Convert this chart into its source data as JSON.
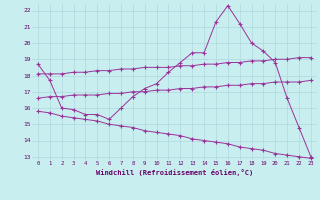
{
  "xlabel": "Windchill (Refroidissement éolien,°C)",
  "background_color": "#c8eef0",
  "grid_color": "#b0d8dc",
  "line_color": "#993399",
  "xlim": [
    -0.5,
    23.5
  ],
  "ylim": [
    12.8,
    22.4
  ],
  "xticks": [
    0,
    1,
    2,
    3,
    4,
    5,
    6,
    7,
    8,
    9,
    10,
    11,
    12,
    13,
    14,
    15,
    16,
    17,
    18,
    19,
    20,
    21,
    22,
    23
  ],
  "yticks": [
    13,
    14,
    15,
    16,
    17,
    18,
    19,
    20,
    21,
    22
  ],
  "line1_x": [
    0,
    1,
    2,
    3,
    4,
    5,
    6,
    7,
    8,
    9,
    10,
    11,
    12,
    13,
    14,
    15,
    16,
    17,
    18,
    19,
    20,
    21,
    22,
    23
  ],
  "line1_y": [
    18.7,
    17.7,
    16.0,
    15.9,
    15.6,
    15.6,
    15.3,
    16.0,
    16.7,
    17.2,
    17.5,
    18.2,
    18.8,
    19.4,
    19.4,
    21.3,
    22.3,
    21.2,
    20.0,
    19.5,
    18.8,
    16.6,
    14.8,
    13.0
  ],
  "line2_x": [
    0,
    1,
    2,
    3,
    4,
    5,
    6,
    7,
    8,
    9,
    10,
    11,
    12,
    13,
    14,
    15,
    16,
    17,
    18,
    19,
    20,
    21,
    22,
    23
  ],
  "line2_y": [
    18.1,
    18.1,
    18.1,
    18.2,
    18.2,
    18.3,
    18.3,
    18.4,
    18.4,
    18.5,
    18.5,
    18.5,
    18.6,
    18.6,
    18.7,
    18.7,
    18.8,
    18.8,
    18.9,
    18.9,
    19.0,
    19.0,
    19.1,
    19.1
  ],
  "line3_x": [
    0,
    1,
    2,
    3,
    4,
    5,
    6,
    7,
    8,
    9,
    10,
    11,
    12,
    13,
    14,
    15,
    16,
    17,
    18,
    19,
    20,
    21,
    22,
    23
  ],
  "line3_y": [
    16.6,
    16.7,
    16.7,
    16.8,
    16.8,
    16.8,
    16.9,
    16.9,
    17.0,
    17.0,
    17.1,
    17.1,
    17.2,
    17.2,
    17.3,
    17.3,
    17.4,
    17.4,
    17.5,
    17.5,
    17.6,
    17.6,
    17.6,
    17.7
  ],
  "line4_x": [
    0,
    1,
    2,
    3,
    4,
    5,
    6,
    7,
    8,
    9,
    10,
    11,
    12,
    13,
    14,
    15,
    16,
    17,
    18,
    19,
    20,
    21,
    22,
    23
  ],
  "line4_y": [
    15.8,
    15.7,
    15.5,
    15.4,
    15.3,
    15.2,
    15.0,
    14.9,
    14.8,
    14.6,
    14.5,
    14.4,
    14.3,
    14.1,
    14.0,
    13.9,
    13.8,
    13.6,
    13.5,
    13.4,
    13.2,
    13.1,
    13.0,
    12.9
  ]
}
